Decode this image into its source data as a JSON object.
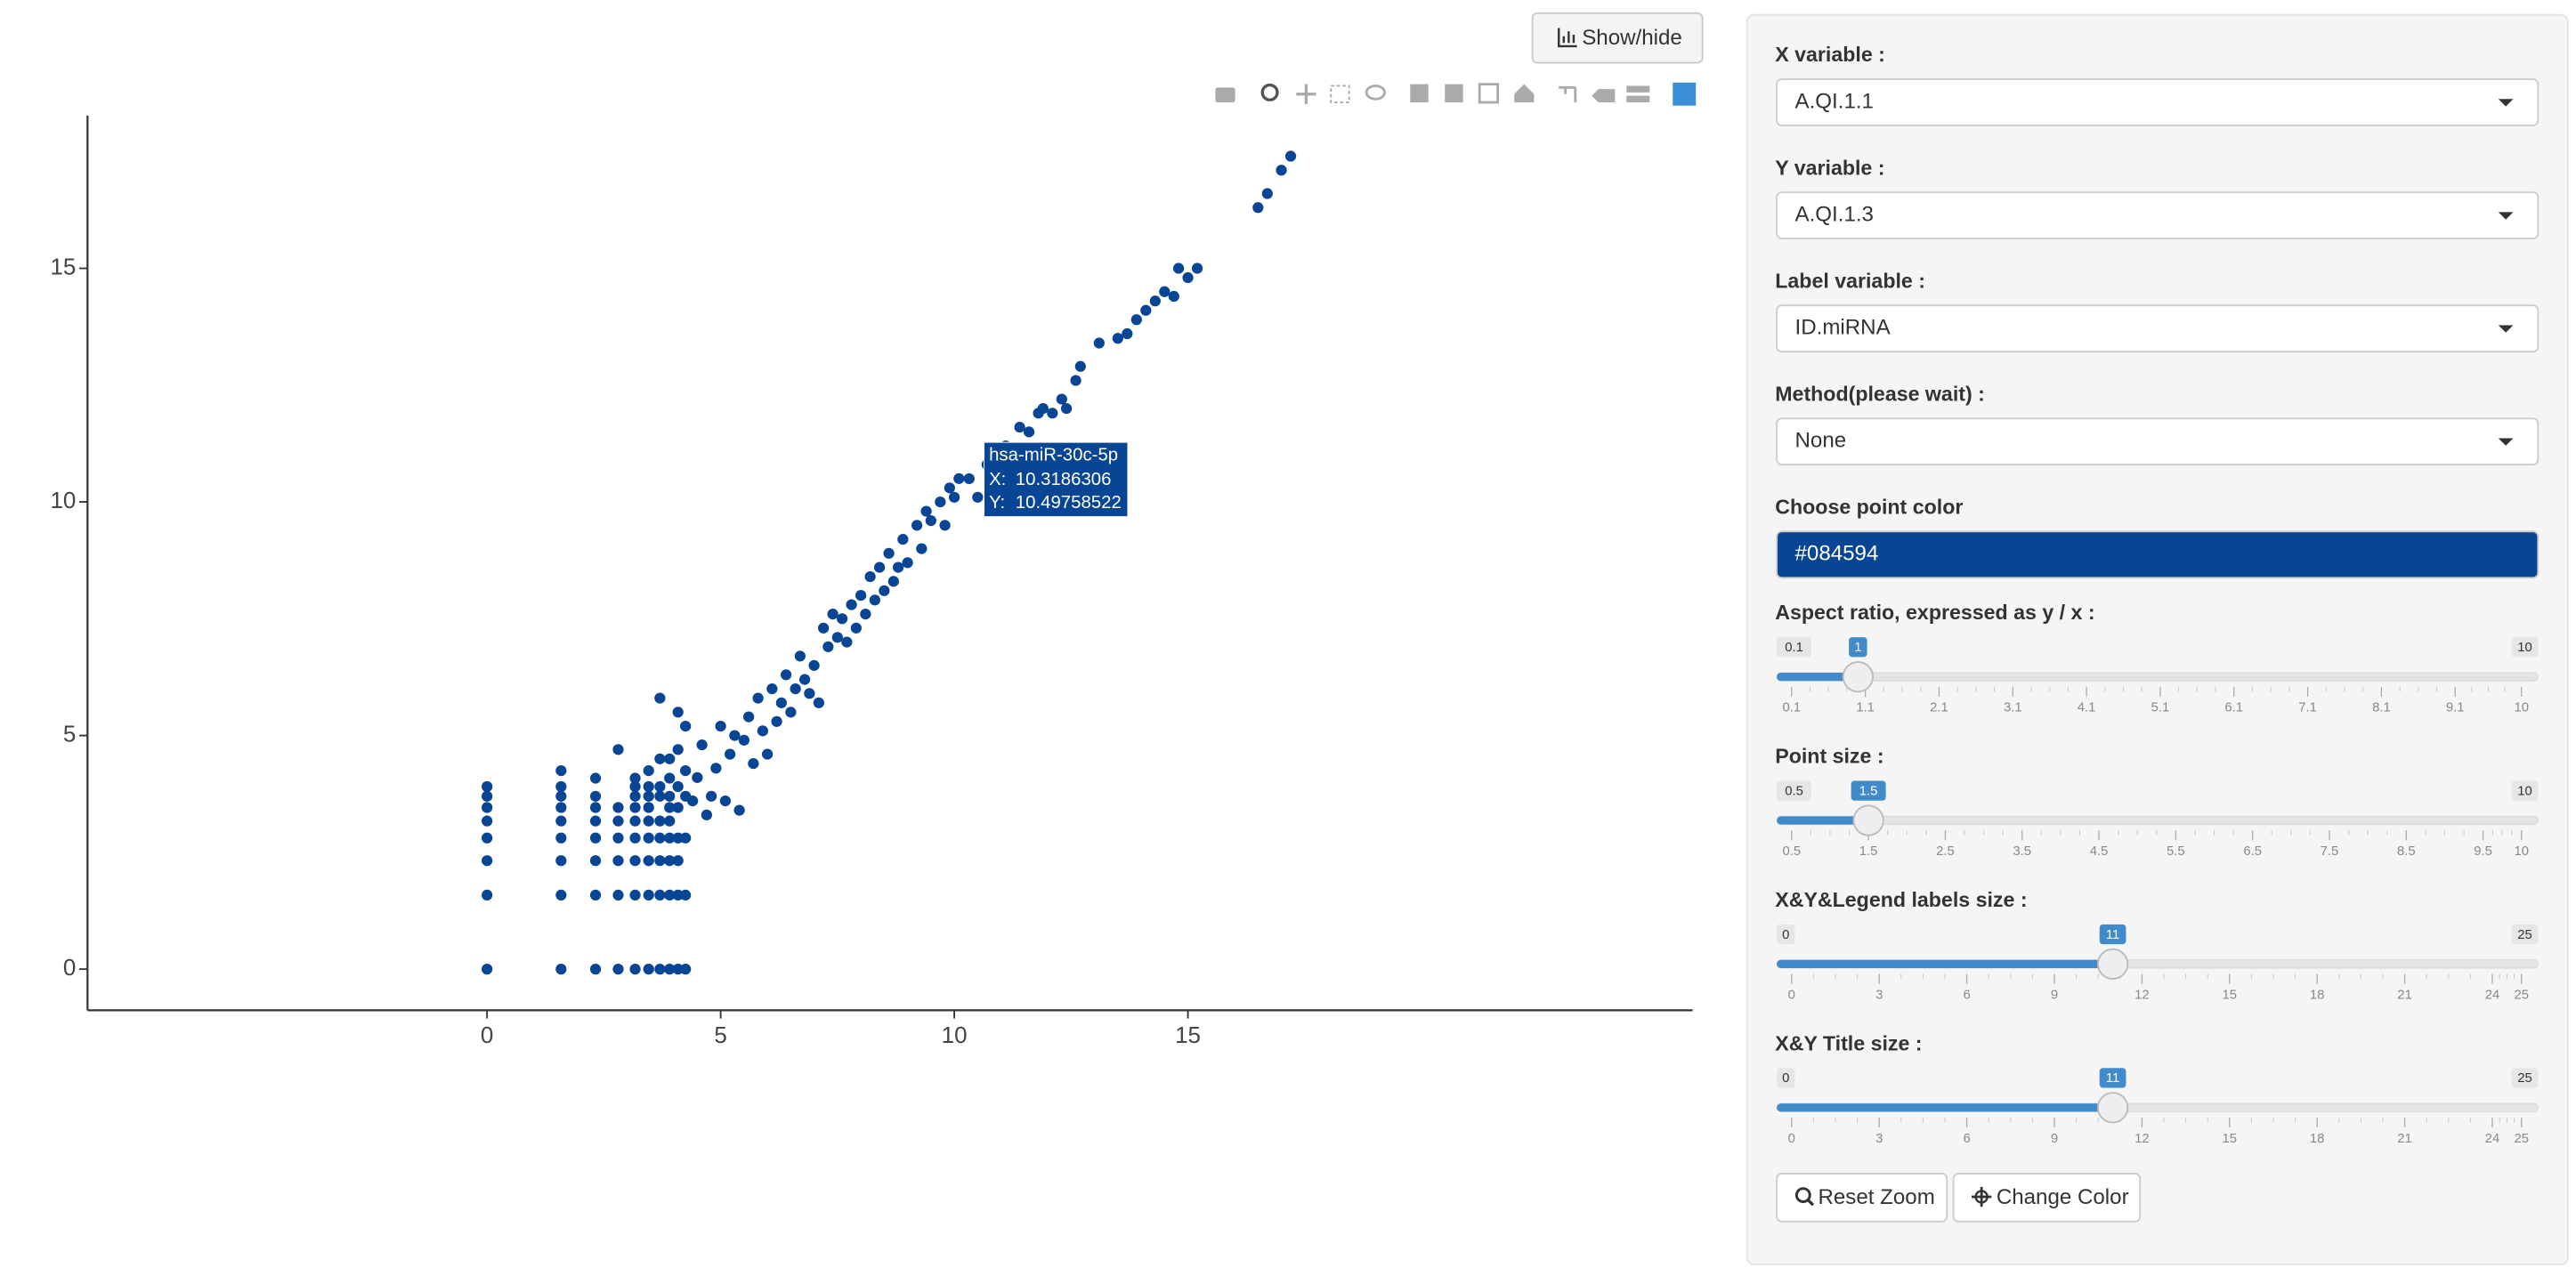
{
  "toolbar": {
    "show_hide": "Show/hide"
  },
  "chart_data": {
    "type": "scatter",
    "color": "#084594",
    "x": [
      0,
      0,
      0,
      0,
      0,
      0,
      0,
      0,
      1.585,
      1.585,
      1.585,
      1.585,
      1.585,
      1.585,
      1.585,
      1.585,
      1.585,
      2.322,
      2.322,
      2.322,
      2.322,
      2.322,
      2.322,
      2.322,
      2.322,
      2.807,
      2.807,
      2.807,
      2.807,
      2.807,
      2.807,
      2.807,
      3.17,
      3.17,
      3.17,
      3.17,
      3.17,
      3.17,
      3.17,
      3.17,
      3.17,
      3.459,
      3.459,
      3.459,
      3.459,
      3.459,
      3.459,
      3.459,
      3.459,
      3.459,
      3.7,
      3.7,
      3.7,
      3.7,
      3.7,
      3.7,
      3.7,
      3.7,
      3.7,
      3.907,
      3.907,
      3.907,
      3.907,
      3.907,
      3.907,
      3.907,
      3.907,
      3.907,
      4.087,
      4.087,
      4.087,
      4.087,
      4.087,
      4.087,
      4.087,
      4.087,
      4.248,
      4.248,
      4.248,
      4.248,
      4.248,
      4.248,
      4.4,
      4.5,
      4.6,
      4.7,
      4.8,
      4.9,
      5.0,
      5.1,
      5.2,
      5.3,
      5.4,
      5.5,
      5.6,
      5.7,
      5.8,
      5.9,
      6.0,
      6.1,
      6.2,
      6.3,
      6.4,
      6.5,
      6.6,
      6.7,
      6.8,
      6.9,
      7.0,
      7.1,
      7.2,
      7.3,
      7.4,
      7.5,
      7.6,
      7.7,
      7.8,
      7.9,
      8.0,
      8.1,
      8.2,
      8.3,
      8.4,
      8.5,
      8.6,
      8.7,
      8.8,
      8.9,
      9.0,
      9.2,
      9.3,
      9.4,
      9.5,
      9.7,
      9.8,
      9.9,
      10.0,
      10.1,
      10.3186306,
      10.5,
      10.7,
      10.9,
      11.1,
      11.3,
      11.4,
      11.6,
      11.8,
      11.9,
      12.1,
      12.3,
      12.4,
      12.6,
      12.7,
      13.1,
      13.5,
      13.7,
      13.9,
      14.1,
      14.3,
      14.5,
      14.7,
      14.8,
      15.0,
      15.2,
      16.5,
      16.7,
      17.0,
      17.2
    ],
    "y": [
      0,
      1.585,
      2.322,
      2.807,
      3.17,
      3.459,
      3.7,
      3.907,
      0,
      1.585,
      2.322,
      2.807,
      3.17,
      3.459,
      3.7,
      3.907,
      4.248,
      0,
      1.585,
      2.322,
      2.807,
      3.17,
      3.459,
      3.7,
      4.087,
      0,
      1.585,
      2.322,
      2.807,
      3.17,
      3.459,
      4.7,
      0,
      1.585,
      2.322,
      2.807,
      3.17,
      3.459,
      3.7,
      3.907,
      4.087,
      0,
      1.585,
      2.322,
      2.807,
      3.17,
      3.459,
      3.7,
      3.907,
      4.248,
      0,
      1.585,
      2.322,
      2.807,
      3.17,
      3.7,
      3.907,
      4.5,
      5.8,
      0,
      1.585,
      2.322,
      2.807,
      3.17,
      3.459,
      3.7,
      4.087,
      4.5,
      0,
      1.585,
      2.322,
      2.807,
      3.459,
      3.907,
      4.7,
      5.5,
      0,
      1.585,
      2.807,
      3.7,
      4.248,
      5.2,
      3.6,
      4.1,
      4.8,
      3.3,
      3.7,
      4.3,
      5.2,
      3.6,
      4.6,
      5.0,
      3.4,
      4.9,
      5.4,
      4.4,
      5.8,
      5.1,
      4.6,
      6.0,
      5.3,
      5.7,
      6.3,
      5.5,
      6.0,
      6.7,
      6.2,
      5.9,
      6.5,
      5.7,
      7.3,
      6.9,
      7.6,
      7.1,
      7.5,
      7.0,
      7.8,
      7.3,
      8.0,
      7.6,
      8.4,
      7.9,
      8.6,
      8.1,
      8.9,
      8.3,
      8.6,
      9.2,
      8.7,
      9.5,
      9.0,
      9.8,
      9.6,
      10.0,
      9.5,
      10.3,
      10.1,
      10.5,
      10.49758522,
      10.1,
      10.8,
      11.0,
      11.2,
      11.0,
      11.6,
      11.5,
      11.9,
      12.0,
      11.9,
      12.2,
      12.0,
      12.6,
      12.9,
      13.4,
      13.5,
      13.6,
      13.9,
      14.1,
      14.3,
      14.5,
      14.4,
      15.0,
      14.8,
      15.0,
      16.3,
      16.6,
      17.1,
      17.4
    ],
    "xlim": [
      -8.55,
      25.8
    ],
    "ylim": [
      -0.88,
      18.27
    ],
    "xticks": [
      0,
      5,
      10,
      15
    ],
    "yticks": [
      0,
      5,
      10,
      15
    ],
    "hover": {
      "label": "hsa-miR-30c-5p",
      "x_prefix": "X:",
      "x": 10.3186306,
      "y_prefix": "Y:",
      "y": 10.49758522
    }
  },
  "sidebar": {
    "selects": [
      {
        "label": "X variable :",
        "value": "A.QI.1.1"
      },
      {
        "label": "Y variable :",
        "value": "A.QI.1.3"
      },
      {
        "label": "Label variable :",
        "value": "ID.miRNA"
      },
      {
        "label": "Method(please wait) :",
        "value": "None"
      }
    ],
    "color_label": "Choose point color",
    "sliders": [
      {
        "label": "Aspect ratio, expressed as y / x :",
        "min": 0.1,
        "max": 10,
        "value": 1,
        "ticks": [
          0.1,
          1.1,
          2.1,
          3.1,
          4.1,
          5.1,
          6.1,
          7.1,
          8.1,
          9.1,
          10
        ]
      },
      {
        "label": "Point size :",
        "min": 0.5,
        "max": 10,
        "value": 1.5,
        "ticks": [
          0.5,
          1.5,
          2.5,
          3.5,
          4.5,
          5.5,
          6.5,
          7.5,
          8.5,
          9.5,
          10
        ]
      },
      {
        "label": "X&Y&Legend labels size :",
        "min": 0,
        "max": 25,
        "value": 11,
        "ticks": [
          0,
          3,
          6,
          9,
          12,
          15,
          18,
          21,
          24,
          25
        ]
      },
      {
        "label": "X&Y Title size :",
        "min": 0,
        "max": 25,
        "value": 11,
        "ticks": [
          0,
          3,
          6,
          9,
          12,
          15,
          18,
          21,
          24,
          25
        ]
      }
    ],
    "buttons": [
      "Reset Zoom",
      "Change Color"
    ]
  }
}
